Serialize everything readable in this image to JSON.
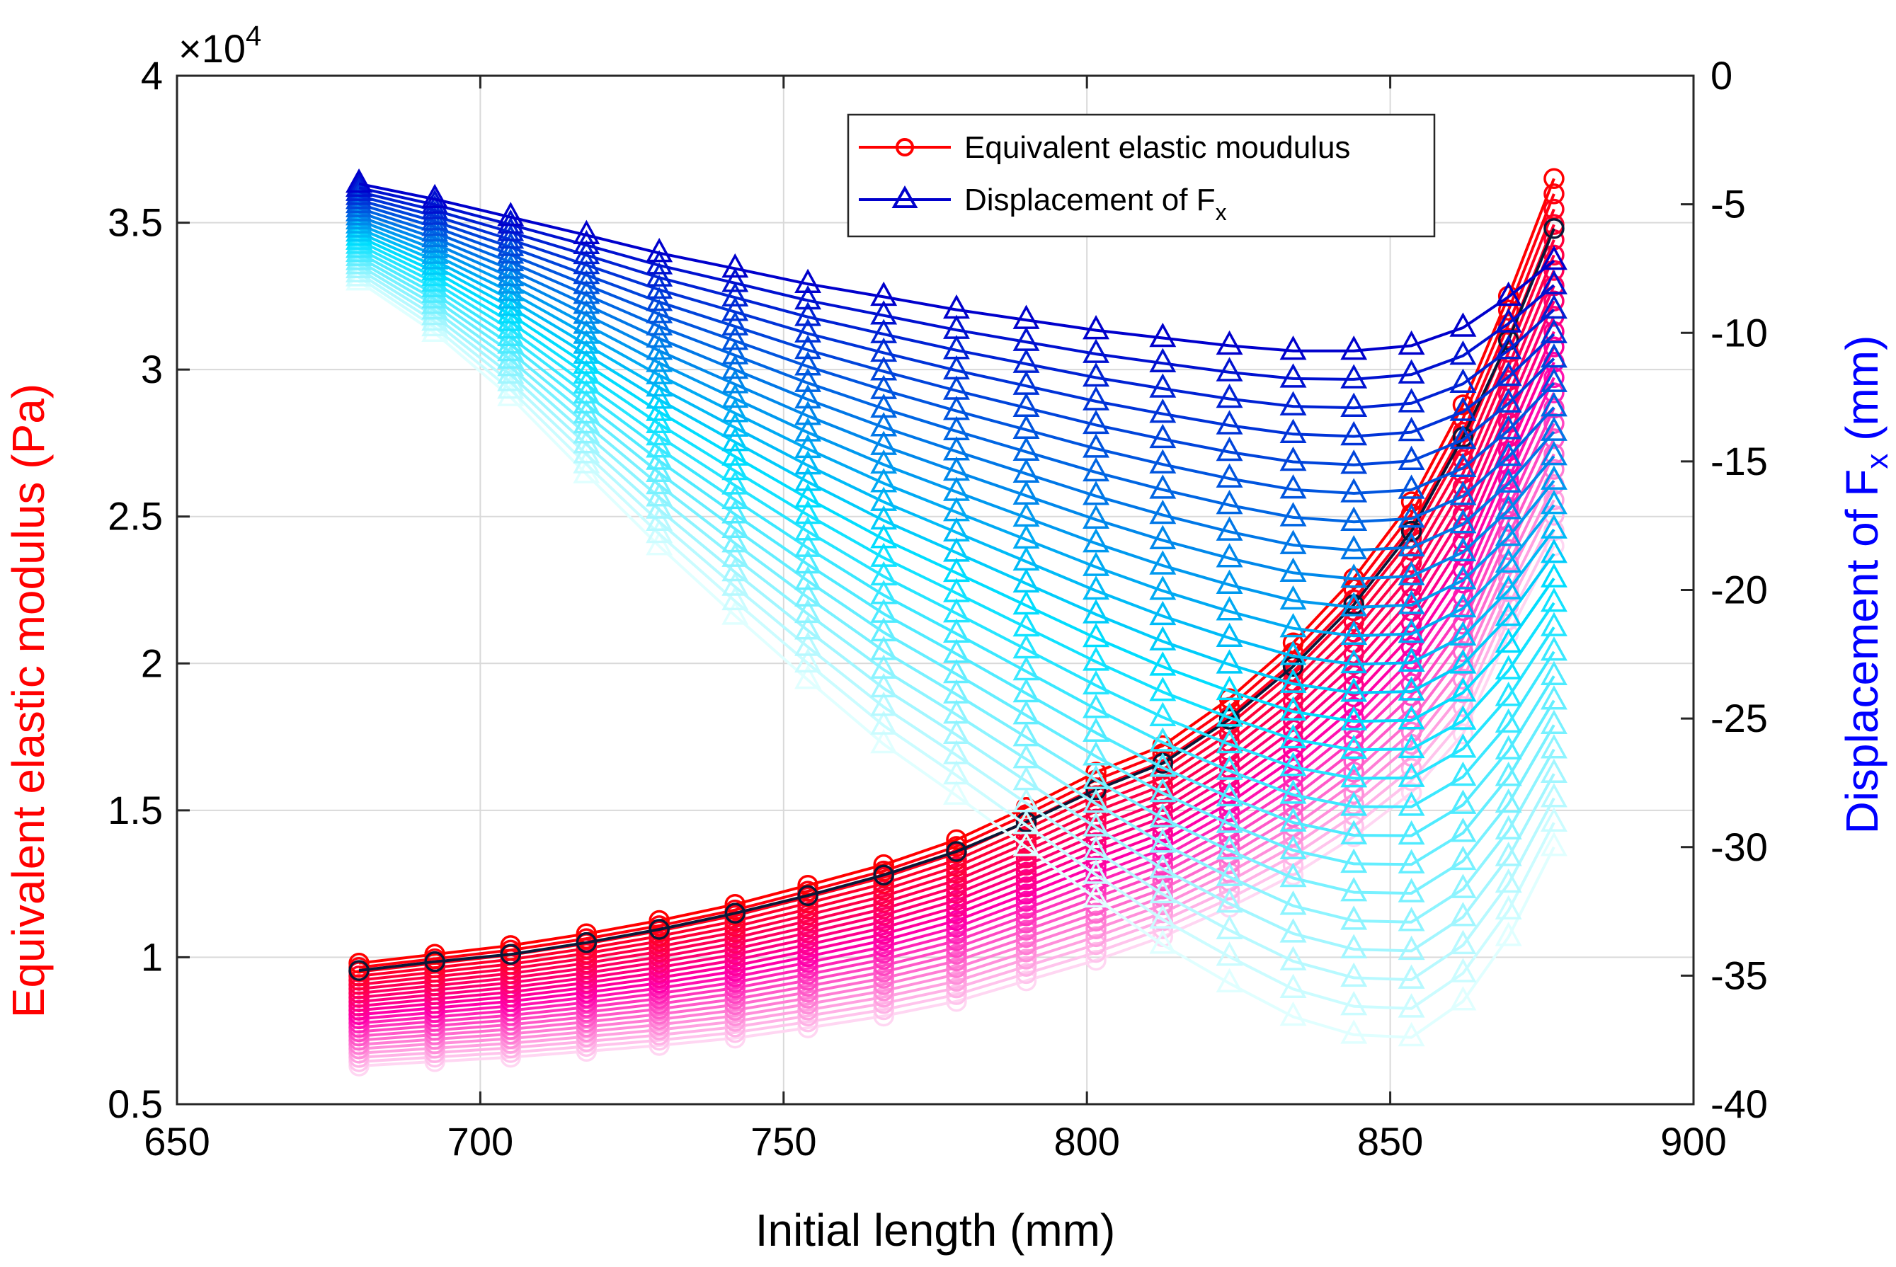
{
  "chart_data": {
    "type": "line",
    "xlabel": "Initial length (mm)",
    "ylabel_left": "Equivalent elastic modulus (Pa)",
    "ylabel_right": "Displacement of F",
    "ylabel_right_subscript": "x",
    "ylabel_right_suffix": " (mm)",
    "exponent_label": "×10",
    "exponent_power": "4",
    "xlim": [
      650,
      900
    ],
    "ylim_left": [
      0.5,
      4
    ],
    "ylim_right": [
      -40,
      0
    ],
    "xticks": [
      650,
      700,
      750,
      800,
      850,
      900
    ],
    "xtick_labels": [
      "650",
      "700",
      "750",
      "800",
      "850",
      "900"
    ],
    "yticks_left": [
      0.5,
      1,
      1.5,
      2,
      2.5,
      3,
      3.5,
      4
    ],
    "ytick_labels_left": [
      "0.5",
      "1",
      "1.5",
      "2",
      "2.5",
      "3",
      "3.5",
      "4"
    ],
    "yticks_right": [
      -40,
      -35,
      -30,
      -25,
      -20,
      -15,
      -10,
      -5,
      0
    ],
    "ytick_labels_right": [
      "-40",
      "-35",
      "-30",
      "-25",
      "-20",
      "-15",
      "-10",
      "-5",
      "0"
    ],
    "grid": true,
    "legend": {
      "position": "top-center",
      "entries": [
        {
          "label": "Equivalent elastic moudulus",
          "color": "#ff0000",
          "marker": "circle"
        },
        {
          "label": "Displacement of F",
          "subscript": "x",
          "color": "#0000cc",
          "marker": "triangle"
        }
      ]
    },
    "x": [
      680,
      692.5,
      705,
      717.5,
      729.5,
      742,
      754,
      766.5,
      778.5,
      790,
      801.5,
      812.5,
      823.5,
      834,
      844,
      853.5,
      862,
      869.5,
      877
    ],
    "modulus_series_count": 25,
    "modulus_top_series": {
      "name": "Equivalent elastic modulus (max)",
      "color": "#ff0000",
      "values": [
        0.98,
        1.01,
        1.04,
        1.08,
        1.125,
        1.18,
        1.245,
        1.315,
        1.4,
        1.51,
        1.63,
        1.72,
        1.88,
        2.07,
        2.29,
        2.55,
        2.88,
        3.25,
        3.65
      ]
    },
    "modulus_bottom_series": {
      "name": "Equivalent elastic modulus (min)",
      "color": "#ffd6f2",
      "values": [
        0.63,
        0.645,
        0.66,
        0.68,
        0.7,
        0.725,
        0.76,
        0.8,
        0.85,
        0.92,
        0.99,
        1.07,
        1.17,
        1.28,
        1.41,
        1.56,
        1.76,
        2.1,
        2.4
      ]
    },
    "modulus_highlight_series": {
      "name": "Equivalent elastic modulus (reference)",
      "color": "#0a1838",
      "values": [
        0.955,
        0.985,
        1.01,
        1.05,
        1.095,
        1.15,
        1.21,
        1.28,
        1.36,
        1.46,
        1.57,
        1.66,
        1.81,
        1.99,
        2.2,
        2.45,
        2.77,
        3.1,
        3.48
      ]
    },
    "displacement_series_count": 25,
    "displacement_top_series": {
      "name": "Displacement of Fx (top)",
      "color": "#0000cc",
      "values": [
        -4.2,
        -4.8,
        -5.5,
        -6.2,
        -6.9,
        -7.5,
        -8.1,
        -8.6,
        -9.1,
        -9.5,
        -9.9,
        -10.2,
        -10.5,
        -10.7,
        -10.7,
        -10.5,
        -9.8,
        -8.6,
        -7.2
      ]
    },
    "displacement_bottom_series": {
      "name": "Displacement of Fx (bottom)",
      "color": "#e0ffff",
      "values": [
        -8.0,
        -10.0,
        -12.5,
        -15.5,
        -18.3,
        -21.0,
        -23.5,
        -26.0,
        -28.0,
        -30.0,
        -32.0,
        -33.8,
        -35.3,
        -36.6,
        -37.3,
        -37.4,
        -36.0,
        -33.5,
        -30.0
      ]
    }
  }
}
